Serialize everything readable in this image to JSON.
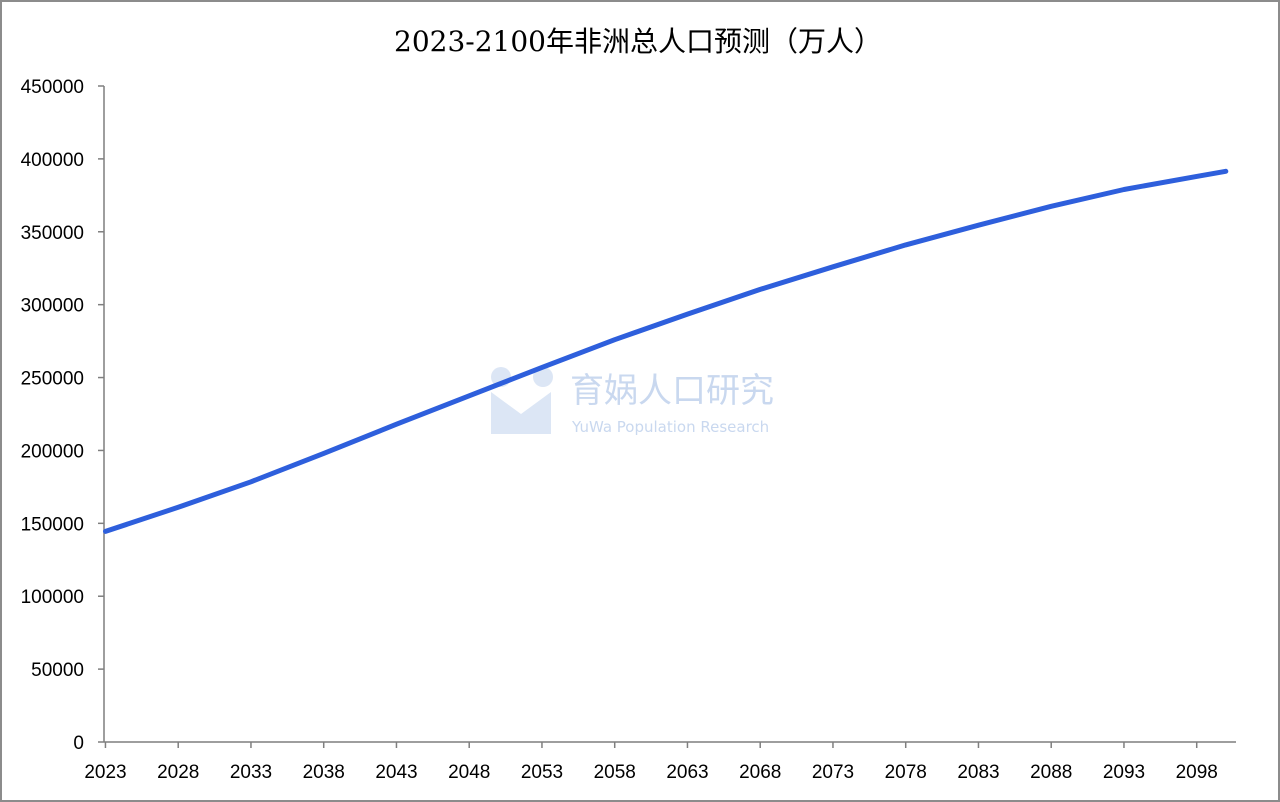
{
  "chart_data": {
    "type": "line",
    "title": "2023-2100年非洲总人口预测（万人）",
    "xlabel": "",
    "ylabel": "",
    "ylim": [
      0,
      450000
    ],
    "yticks": [
      0,
      50000,
      100000,
      150000,
      200000,
      250000,
      300000,
      350000,
      400000,
      450000
    ],
    "xticks": [
      2023,
      2028,
      2033,
      2038,
      2043,
      2048,
      2053,
      2058,
      2063,
      2068,
      2073,
      2078,
      2083,
      2088,
      2093,
      2098
    ],
    "grid": false,
    "legend": "none",
    "series": [
      {
        "color": "#2e5fdc",
        "x": [
          2023,
          2028,
          2033,
          2038,
          2043,
          2048,
          2053,
          2058,
          2063,
          2068,
          2073,
          2078,
          2083,
          2088,
          2093,
          2098,
          2100
        ],
        "values": [
          144500,
          161000,
          178500,
          198000,
          218000,
          237500,
          257000,
          276000,
          293500,
          310500,
          326000,
          341000,
          354500,
          367500,
          379000,
          388000,
          391500
        ]
      }
    ]
  },
  "watermark": {
    "main": "育娲人口研究",
    "sub": "YuWa Population Research",
    "color": "#c9d8ef"
  }
}
